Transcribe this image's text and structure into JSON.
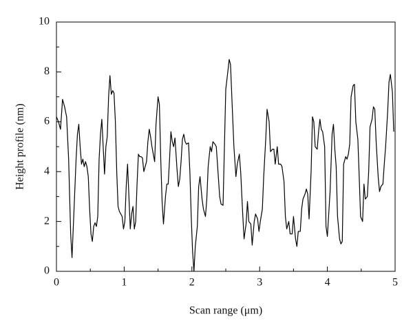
{
  "chart_data": {
    "type": "line",
    "x_label": "Scan range (μm)",
    "y_label": "Height profile (nm)",
    "x": [
      0,
      0.03,
      0.06,
      0.09,
      0.12,
      0.15,
      0.18,
      0.21,
      0.23,
      0.26,
      0.29,
      0.31,
      0.33,
      0.35,
      0.37,
      0.39,
      0.41,
      0.43,
      0.45,
      0.47,
      0.49,
      0.51,
      0.53,
      0.55,
      0.57,
      0.59,
      0.61,
      0.63,
      0.65,
      0.67,
      0.69,
      0.71,
      0.73,
      0.75,
      0.77,
      0.79,
      0.81,
      0.83,
      0.85,
      0.87,
      0.89,
      0.91,
      0.93,
      0.95,
      0.97,
      0.99,
      1.01,
      1.03,
      1.05,
      1.07,
      1.09,
      1.11,
      1.13,
      1.15,
      1.17,
      1.19,
      1.21,
      1.23,
      1.25,
      1.27,
      1.29,
      1.31,
      1.33,
      1.35,
      1.37,
      1.39,
      1.41,
      1.43,
      1.45,
      1.47,
      1.5,
      1.52,
      1.54,
      1.56,
      1.58,
      1.61,
      1.63,
      1.65,
      1.67,
      1.69,
      1.71,
      1.73,
      1.75,
      1.78,
      1.8,
      1.82,
      1.84,
      1.86,
      1.88,
      1.9,
      1.92,
      1.95,
      1.97,
      1.99,
      2.01,
      2.03,
      2.05,
      2.08,
      2.1,
      2.12,
      2.15,
      2.17,
      2.2,
      2.22,
      2.24,
      2.27,
      2.29,
      2.31,
      2.34,
      2.36,
      2.38,
      2.41,
      2.43,
      2.46,
      2.48,
      2.5,
      2.53,
      2.55,
      2.57,
      2.6,
      2.62,
      2.65,
      2.67,
      2.7,
      2.72,
      2.75,
      2.77,
      2.8,
      2.82,
      2.84,
      2.87,
      2.89,
      2.92,
      2.94,
      2.97,
      2.99,
      3.01,
      3.04,
      3.06,
      3.09,
      3.11,
      3.14,
      3.16,
      3.19,
      3.21,
      3.23,
      3.26,
      3.28,
      3.31,
      3.33,
      3.36,
      3.38,
      3.4,
      3.43,
      3.45,
      3.48,
      3.5,
      3.53,
      3.55,
      3.57,
      3.6,
      3.62,
      3.64,
      3.67,
      3.69,
      3.71,
      3.73,
      3.76,
      3.78,
      3.8,
      3.82,
      3.85,
      3.87,
      3.89,
      3.91,
      3.93,
      3.96,
      3.98,
      4.0,
      4.02,
      4.04,
      4.07,
      4.09,
      4.11,
      4.13,
      4.15,
      4.18,
      4.2,
      4.22,
      4.24,
      4.27,
      4.29,
      4.31,
      4.33,
      4.35,
      4.38,
      4.4,
      4.42,
      4.45,
      4.47,
      4.49,
      4.52,
      4.54,
      4.56,
      4.59,
      4.61,
      4.63,
      4.66,
      4.68,
      4.7,
      4.72,
      4.75,
      4.77,
      4.79,
      4.82,
      4.84,
      4.86,
      4.89,
      4.91,
      4.93,
      4.96,
      4.98
    ],
    "series": [
      {
        "color": "#000000",
        "values": [
          6.2,
          6.0,
          5.7,
          6.9,
          6.6,
          6.2,
          4.5,
          1.5,
          0.55,
          2.5,
          4.5,
          5.5,
          5.9,
          5.0,
          4.3,
          4.5,
          4.2,
          4.4,
          4.2,
          3.8,
          2.5,
          1.5,
          1.2,
          1.8,
          1.95,
          1.8,
          2.2,
          4.5,
          5.5,
          6.1,
          5.0,
          3.9,
          5.0,
          5.4,
          7.0,
          7.85,
          7.1,
          7.25,
          7.15,
          6.0,
          4.0,
          2.6,
          2.4,
          2.3,
          2.2,
          1.7,
          2.0,
          3.4,
          4.3,
          3.0,
          1.7,
          2.3,
          2.6,
          1.7,
          2.0,
          3.5,
          4.7,
          4.6,
          4.6,
          4.55,
          4.0,
          4.2,
          4.4,
          5.2,
          5.7,
          5.4,
          5.0,
          4.7,
          4.4,
          5.9,
          7.0,
          6.7,
          4.5,
          2.8,
          1.9,
          3.0,
          3.5,
          3.5,
          4.5,
          5.6,
          5.2,
          5.0,
          5.35,
          4.1,
          3.4,
          3.7,
          4.4,
          5.3,
          5.5,
          5.2,
          5.1,
          5.15,
          4.0,
          2.2,
          0.8,
          0.0,
          1.0,
          1.8,
          3.4,
          3.8,
          2.9,
          2.5,
          2.2,
          2.9,
          4.2,
          5.0,
          4.8,
          5.2,
          5.1,
          5.0,
          4.2,
          3.0,
          2.7,
          2.65,
          5.0,
          7.3,
          8.0,
          8.5,
          8.3,
          6.3,
          5.0,
          3.8,
          4.3,
          4.7,
          4.0,
          2.3,
          1.3,
          1.9,
          2.8,
          2.0,
          1.9,
          1.05,
          2.0,
          2.3,
          2.1,
          1.6,
          2.0,
          2.5,
          3.8,
          5.3,
          6.5,
          6.0,
          4.8,
          4.9,
          4.9,
          4.3,
          5.0,
          4.3,
          4.3,
          4.2,
          3.6,
          2.2,
          1.7,
          2.0,
          1.5,
          1.5,
          2.2,
          1.3,
          1.0,
          1.6,
          1.6,
          2.5,
          2.9,
          3.1,
          3.3,
          3.1,
          2.1,
          4.0,
          6.2,
          6.0,
          5.0,
          4.9,
          5.6,
          6.1,
          5.7,
          5.6,
          5.0,
          1.8,
          1.4,
          2.3,
          3.2,
          5.5,
          5.9,
          4.9,
          4.2,
          2.2,
          1.3,
          1.1,
          1.2,
          4.3,
          4.6,
          4.5,
          4.7,
          5.1,
          7.0,
          7.45,
          7.5,
          6.0,
          5.3,
          3.8,
          2.2,
          2.0,
          3.5,
          2.9,
          3.0,
          4.0,
          5.8,
          6.1,
          6.6,
          6.5,
          5.2,
          3.8,
          3.2,
          3.4,
          3.5,
          4.3,
          5.0,
          6.4,
          7.6,
          7.9,
          7.2,
          5.6
        ]
      }
    ],
    "xlim": [
      0,
      5
    ],
    "xticks": [
      0,
      1,
      2,
      3,
      4,
      5
    ],
    "xminorticks": [
      0.5,
      1.5,
      2.5,
      3.5,
      4.5
    ],
    "ylim": [
      0,
      10
    ],
    "yticks": [
      0,
      2,
      4,
      6,
      8,
      10
    ],
    "yminorticks": [
      1,
      3,
      5,
      7,
      9
    ],
    "grid": false
  }
}
